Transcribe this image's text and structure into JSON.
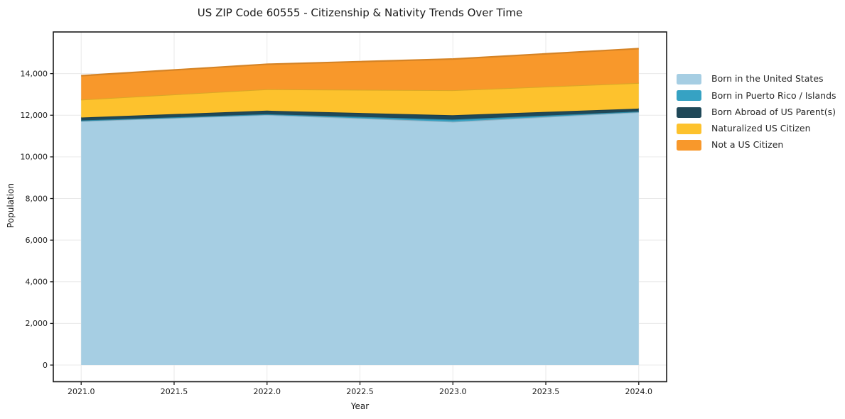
{
  "title": "US ZIP Code 60555 - Citizenship & Nativity Trends Over Time",
  "chart_data": {
    "type": "area",
    "stacked": true,
    "title": "US ZIP Code 60555 - Citizenship & Nativity Trends Over Time",
    "xlabel": "Year",
    "ylabel": "Population",
    "x": [
      2021,
      2022,
      2023,
      2024
    ],
    "series": [
      {
        "name": "Born in the United States",
        "color": "#A6CEE3",
        "values": [
          11720,
          12020,
          11690,
          12150
        ]
      },
      {
        "name": "Born in Puerto Rico / Islands",
        "color": "#36A2C3",
        "values": [
          30,
          30,
          100,
          30
        ]
      },
      {
        "name": "Born Abroad of US Parent(s)",
        "color": "#1F4858",
        "values": [
          140,
          170,
          210,
          140
        ]
      },
      {
        "name": "Naturalized US Citizen",
        "color": "#FDC22D",
        "values": [
          860,
          1030,
          1200,
          1230
        ]
      },
      {
        "name": "Not a US Citizen",
        "color": "#F8982B",
        "values": [
          1150,
          1200,
          1500,
          1650
        ]
      }
    ],
    "stack_totals": [
      13900,
      14450,
      14700,
      15200
    ],
    "xlim": [
      2020.85,
      2024.15
    ],
    "ylim": [
      -800,
      16000
    ],
    "xticks": [
      2021.0,
      2021.5,
      2022.0,
      2022.5,
      2023.0,
      2023.5,
      2024.0
    ],
    "xtick_labels": [
      "2021.0",
      "2021.5",
      "2022.0",
      "2022.5",
      "2023.0",
      "2023.5",
      "2024.0"
    ],
    "yticks": [
      0,
      2000,
      4000,
      6000,
      8000,
      10000,
      12000,
      14000
    ],
    "ytick_labels": [
      "0",
      "2,000",
      "4,000",
      "6,000",
      "8,000",
      "10,000",
      "12,000",
      "14,000"
    ],
    "grid": true,
    "grid_color": "#e9e9e9",
    "spine_color": "#1a1a1a",
    "tick_label_color": "#1a1a1a",
    "legend_position": "outside-right"
  }
}
